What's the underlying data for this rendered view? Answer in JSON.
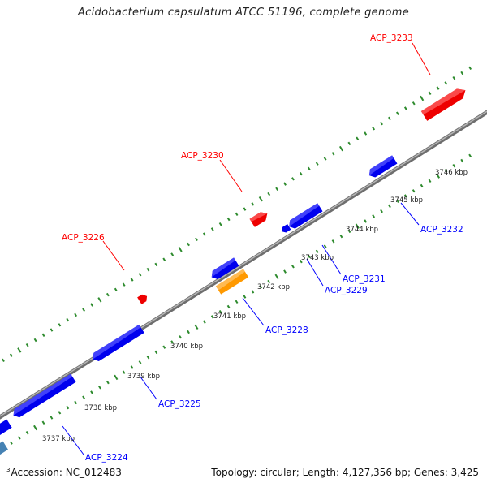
{
  "title": "Acidobacterium capsulatum ATCC 51196, complete genome",
  "footer": {
    "accession": "Accession: NC_012483",
    "summary": "Topology: circular; Length: 4,127,356 bp; Genes: 3,425"
  },
  "edge_fragment": "3",
  "colors": {
    "backbone": "#808080",
    "forward_gene": "#ff0000",
    "reverse_gene": "#0000ff",
    "highlight_gene": "#ff9900",
    "other_gene": "#4682b4",
    "tick": "#2e8b2e",
    "forward_label": "#ff0000",
    "reverse_label": "#0000ff"
  },
  "scale": {
    "unit": "kbp",
    "ticks": [
      "3737 kbp",
      "3738 kbp",
      "3739 kbp",
      "3740 kbp",
      "3741 kbp",
      "3742 kbp",
      "3743 kbp",
      "3744 kbp",
      "3745 kbp",
      "3746 kbp"
    ]
  },
  "forward_labels": [
    "ACP_3226",
    "ACP_3230",
    "ACP_3233"
  ],
  "reverse_labels": [
    "ACP_3224",
    "ACP_3225",
    "ACP_3228",
    "ACP_3229",
    "ACP_3231",
    "ACP_3232"
  ]
}
